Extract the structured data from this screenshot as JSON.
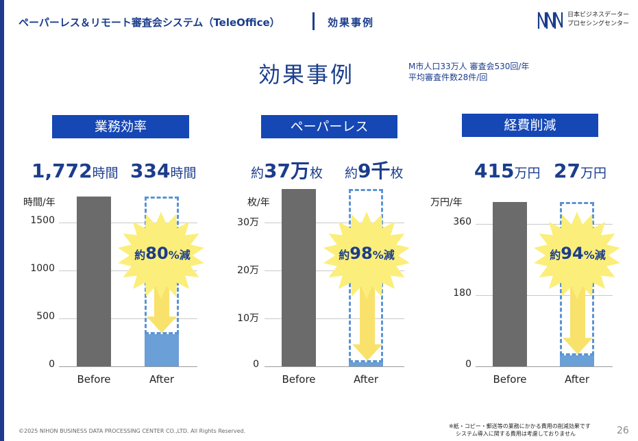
{
  "header": {
    "title": "ペーパーレス＆リモート審査会システム（TeleOffice）",
    "subtitle": "効果事例"
  },
  "logo": {
    "line1": "日本ビジネスデーター",
    "line2": "プロセシングセンター"
  },
  "page_title": "効果事例",
  "info": {
    "line1": "M市人口33万人  審査会530回/年",
    "line2": "平均審査件数28件/回"
  },
  "panels": [
    {
      "heading": "業務効率",
      "before_num": "1,772",
      "before_unit": "時間",
      "after_num": "334",
      "after_unit": "時間",
      "unit_label": "時間/年",
      "ticks": [
        "1500",
        "1000",
        "500",
        "0"
      ],
      "pct_prefix": "約",
      "pct_value": "80",
      "pct_suffix": "%減"
    },
    {
      "heading": "ペーパーレス",
      "before_prefix": "約",
      "before_num": "37万",
      "before_unit": "枚",
      "after_prefix": "約",
      "after_num": "9千",
      "after_unit": "枚",
      "unit_label": "枚/年",
      "ticks": [
        "30万",
        "20万",
        "10万",
        "0"
      ],
      "pct_prefix": "約",
      "pct_value": "98",
      "pct_suffix": "%減"
    },
    {
      "heading": "経費削減",
      "before_num": "415",
      "before_unit": "万円",
      "after_num": "27",
      "after_unit": "万円",
      "unit_label": "万円/年",
      "ticks": [
        "360",
        "180",
        "0"
      ],
      "pct_prefix": "約",
      "pct_value": "94",
      "pct_suffix": "%減"
    }
  ],
  "x_labels": {
    "before": "Before",
    "after": "After"
  },
  "colors": {
    "before_bar": "#6b6b6b",
    "after_bar": "#6a9fd8",
    "accent": "#1b3d8c",
    "heading_bg": "#1547b5",
    "burst": "#fbee7a",
    "arrow": "#f8e26c"
  },
  "chart_data": [
    {
      "type": "bar",
      "title": "業務効率",
      "categories": [
        "Before",
        "After"
      ],
      "values": [
        1772,
        334
      ],
      "ylabel": "時間/年",
      "ylim": [
        0,
        1772
      ],
      "yticks": [
        0,
        500,
        1000,
        1500
      ],
      "annotation": "約80%減"
    },
    {
      "type": "bar",
      "title": "ペーパーレス",
      "categories": [
        "Before",
        "After"
      ],
      "values": [
        370000,
        9000
      ],
      "ylabel": "枚/年",
      "ylim": [
        0,
        370000
      ],
      "yticks": [
        0,
        100000,
        200000,
        300000
      ],
      "annotation": "約98%減"
    },
    {
      "type": "bar",
      "title": "経費削減",
      "categories": [
        "Before",
        "After"
      ],
      "values": [
        415,
        27
      ],
      "ylabel": "万円/年",
      "ylim": [
        0,
        415
      ],
      "yticks": [
        0,
        180,
        360
      ],
      "annotation": "約94%減"
    }
  ],
  "footer": {
    "copyright": "©2025 NIHON BUSINESS DATA PROCESSING CENTER CO.,LTD.  All Rights Reserved.",
    "note_line1": "※紙・コピー・郵送等の業務にかかる費用の削減効果です",
    "note_line2": "システム導入に関する費用は考慮しておりません",
    "page_number": "26"
  }
}
